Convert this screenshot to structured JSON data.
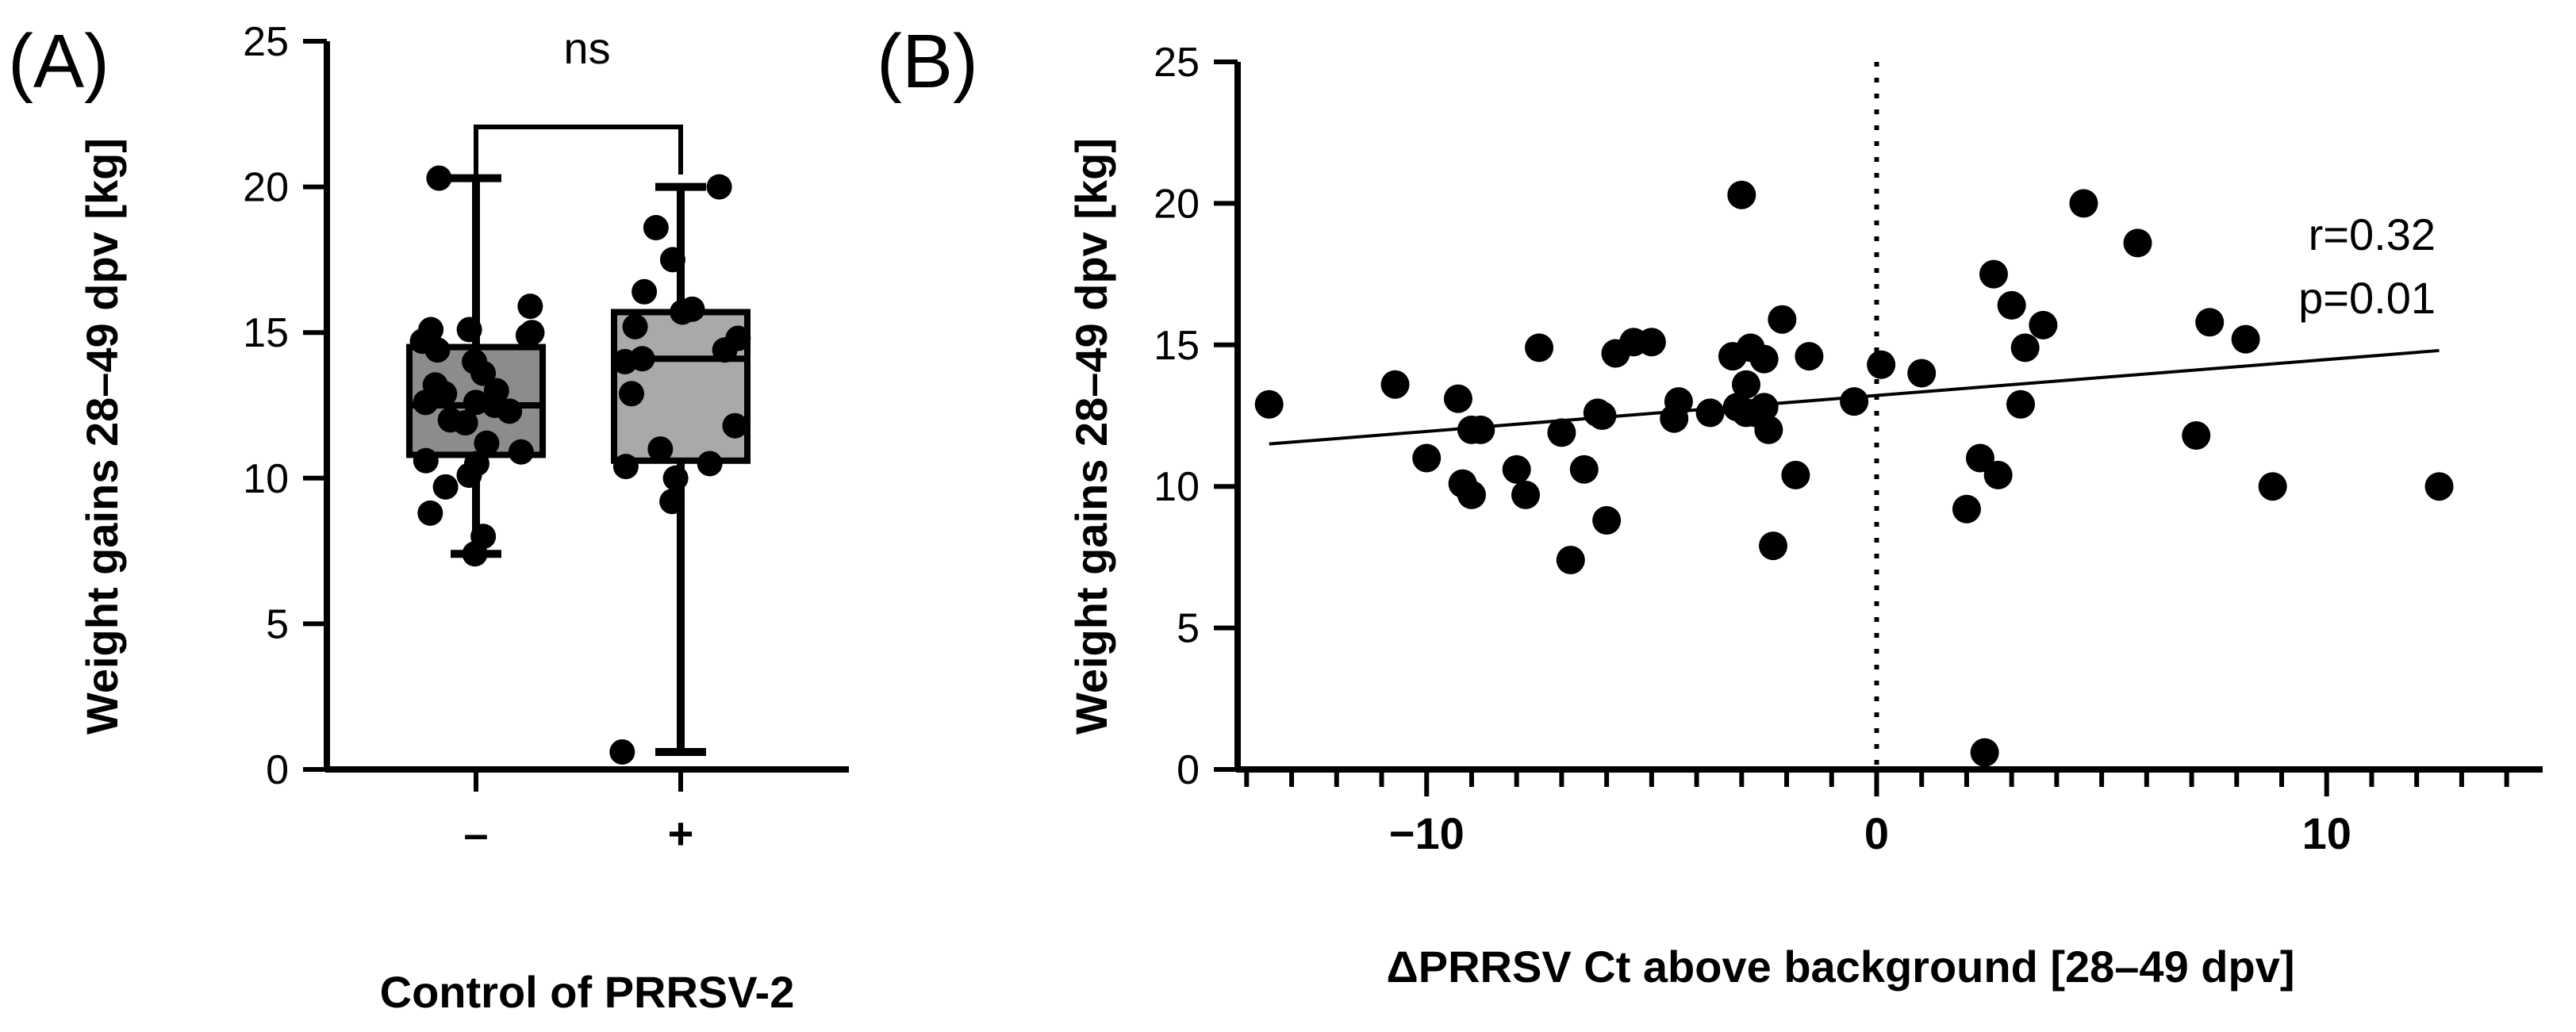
{
  "colors": {
    "ink": "#000000",
    "box_neg": "#8c8c8c",
    "box_pos": "#a9a9a9",
    "background": "#ffffff"
  },
  "chart_data": [
    {
      "panel": "(A)",
      "type": "box",
      "xlabel": "Control of PRRSV-2",
      "ylabel": "Weight gains 28–49 dpv [kg]",
      "ylim": [
        0,
        25
      ],
      "yticks": [
        0,
        5,
        10,
        15,
        20,
        25
      ],
      "yticklabels": [
        "0",
        "5",
        "10",
        "15",
        "20",
        "25"
      ],
      "categories": [
        "–",
        "+"
      ],
      "significance": "ns",
      "groups": [
        {
          "name": "–",
          "min": 7.4,
          "q1": 10.8,
          "median": 12.5,
          "q3": 14.5,
          "max": 20.3,
          "points": [
            7.4,
            8.0,
            8.8,
            9.7,
            10.1,
            10.5,
            10.6,
            10.9,
            11.2,
            11.9,
            12.0,
            12.3,
            12.5,
            12.6,
            12.6,
            12.9,
            13.0,
            13.2,
            13.6,
            14.0,
            14.4,
            14.7,
            14.9,
            15.0,
            15.1,
            15.1,
            15.9,
            20.3
          ]
        },
        {
          "name": "+",
          "min": 0.6,
          "q1": 10.6,
          "median": 14.1,
          "q3": 15.7,
          "max": 20.0,
          "points": [
            0.6,
            9.2,
            10.0,
            10.4,
            10.5,
            11.0,
            11.8,
            12.9,
            14.0,
            14.1,
            14.4,
            14.8,
            15.2,
            15.7,
            15.8,
            16.4,
            17.5,
            18.6,
            20.0
          ]
        }
      ]
    },
    {
      "panel": "(B)",
      "type": "scatter",
      "xlabel": "ΔPRRSV Ct above background [28–49 dpv]",
      "ylabel": "Weight gains 28–49 dpv [kg]",
      "xlim": [
        -14.2,
        14.8
      ],
      "ylim": [
        0,
        25
      ],
      "xticks": [
        -10,
        0,
        10
      ],
      "xticklabels": [
        "−10",
        "0",
        "10"
      ],
      "yticks": [
        0,
        5,
        10,
        15,
        20,
        25
      ],
      "yticklabels": [
        "0",
        "5",
        "10",
        "15",
        "20",
        "25"
      ],
      "vline_x": 0,
      "fit_line": {
        "x": [
          -13.5,
          12.5
        ],
        "y": [
          11.5,
          14.8
        ]
      },
      "annotation": [
        "r=0.32",
        "p=0.01"
      ],
      "x": [
        -13.5,
        -10.7,
        -10.0,
        -9.3,
        -9.2,
        -9.0,
        -9.0,
        -8.8,
        -8.0,
        -7.8,
        -7.5,
        -7.0,
        -6.8,
        -6.5,
        -6.2,
        -6.1,
        -6.0,
        -5.8,
        -5.4,
        -5.0,
        -4.5,
        -4.4,
        -3.7,
        -3.2,
        -3.1,
        -3.0,
        -2.9,
        -2.9,
        -2.8,
        -2.7,
        -2.5,
        -2.5,
        -2.4,
        -2.3,
        -2.1,
        -1.8,
        -1.5,
        -0.5,
        0.1,
        1.0,
        2.0,
        2.3,
        2.4,
        2.6,
        2.7,
        3.0,
        3.2,
        3.3,
        3.7,
        4.6,
        5.8,
        7.1,
        7.4,
        8.2,
        8.8,
        12.5
      ],
      "y": [
        12.9,
        13.6,
        11.0,
        13.1,
        10.1,
        9.7,
        12.0,
        12.0,
        10.6,
        9.7,
        14.9,
        11.9,
        7.4,
        10.6,
        12.6,
        12.5,
        8.8,
        14.7,
        15.1,
        15.1,
        12.4,
        13.0,
        12.6,
        14.6,
        12.8,
        20.3,
        13.6,
        12.6,
        14.9,
        12.6,
        14.5,
        12.8,
        12.0,
        7.9,
        15.9,
        10.4,
        14.6,
        13.0,
        14.3,
        14.0,
        9.2,
        11.0,
        0.6,
        17.5,
        10.4,
        16.4,
        12.9,
        14.9,
        15.7,
        20.0,
        18.6,
        11.8,
        15.8,
        15.2,
        10.0,
        10.0
      ]
    }
  ]
}
